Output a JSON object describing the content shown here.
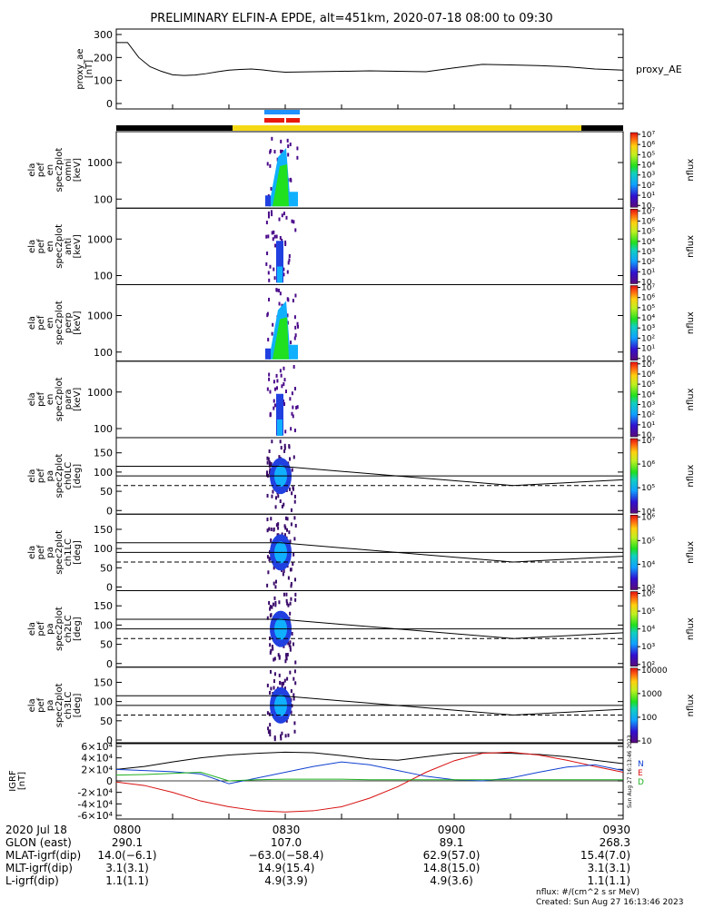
{
  "title": "PRELIMINARY ELFIN-A EPDE, alt=451km, 2020-07-18 08:00 to 09:30",
  "ae_panel": {
    "ylabel": [
      "proxy_ae",
      "[nT]"
    ],
    "yticks": [
      "0",
      "100",
      "200",
      "300"
    ],
    "side_label": "proxy_AE"
  },
  "spectral_panels": [
    {
      "ylabel": [
        "ela",
        "pef",
        "en",
        "spec2plot",
        "omni",
        "[keV]"
      ],
      "yticks": [
        "100",
        "1000"
      ],
      "cb_ticks": [
        "10",
        "10¹",
        "10²",
        "10³",
        "10⁴",
        "10⁵",
        "10⁶",
        "10⁷"
      ],
      "cb_label": "nflux"
    },
    {
      "ylabel": [
        "ela",
        "pef",
        "en",
        "spec2plot",
        "anti",
        "[keV]"
      ],
      "yticks": [
        "100",
        "1000"
      ],
      "cb_ticks": [
        "10",
        "10¹",
        "10²",
        "10³",
        "10⁴",
        "10⁵",
        "10⁶",
        "10⁷"
      ],
      "cb_label": "nflux"
    },
    {
      "ylabel": [
        "ela",
        "pef",
        "en",
        "spec2plot",
        "perp",
        "[keV]"
      ],
      "yticks": [
        "100",
        "1000"
      ],
      "cb_ticks": [
        "10",
        "10¹",
        "10²",
        "10³",
        "10⁴",
        "10⁵",
        "10⁶",
        "10⁷"
      ],
      "cb_label": "nflux"
    },
    {
      "ylabel": [
        "ela",
        "pef",
        "en",
        "spec2plot",
        "para",
        "[keV]"
      ],
      "yticks": [
        "100",
        "1000"
      ],
      "cb_ticks": [
        "10",
        "10¹",
        "10²",
        "10³",
        "10⁴",
        "10⁵",
        "10⁶",
        "10⁷"
      ],
      "cb_label": "nflux"
    }
  ],
  "pitch_panels": [
    {
      "ylabel": [
        "ela",
        "pef",
        "pa",
        "spec2plot",
        "ch0LC",
        "[deg]"
      ],
      "yticks": [
        "0",
        "50",
        "100",
        "150"
      ],
      "cb_ticks": [
        "10⁴",
        "10⁵",
        "10⁶",
        "10⁷"
      ],
      "cb_label": "nflux"
    },
    {
      "ylabel": [
        "ela",
        "pef",
        "pa",
        "spec2plot",
        "ch1LC",
        "[deg]"
      ],
      "yticks": [
        "0",
        "50",
        "100",
        "150"
      ],
      "cb_ticks": [
        "10³",
        "10⁴",
        "10⁵",
        "10⁶"
      ],
      "cb_label": "nflux"
    },
    {
      "ylabel": [
        "ela",
        "pef",
        "pa",
        "spec2plot",
        "ch2LC",
        "[deg]"
      ],
      "yticks": [
        "0",
        "50",
        "100",
        "150"
      ],
      "cb_ticks": [
        "10²",
        "10³",
        "10⁴",
        "10⁵",
        "10⁶"
      ],
      "cb_label": "nflux"
    },
    {
      "ylabel": [
        "ela",
        "pef",
        "pa",
        "spec2plot",
        "ch3LC",
        "[deg]"
      ],
      "yticks": [
        "0",
        "50",
        "100",
        "150"
      ],
      "cb_ticks": [
        "10",
        "100",
        "1000",
        "10000"
      ],
      "cb_label": "nflux"
    }
  ],
  "igrf_panel": {
    "ylabel": [
      "IGRF",
      "[nT]"
    ],
    "yticks": [
      "-6×10⁴",
      "-4×10⁴",
      "-2×10⁴",
      "0",
      "2×10⁴",
      "4×10⁴",
      "6×10⁴"
    ],
    "legend": [
      "N",
      "E",
      "D"
    ],
    "stamp": "Sun Aug 27 16:13:46 2023"
  },
  "footer": {
    "rows": [
      {
        "label": "2020 Jul 18",
        "values": [
          "0800",
          "0830",
          "0900",
          "0930"
        ]
      },
      {
        "label": "GLON (east)",
        "values": [
          "290.1",
          "107.0",
          "89.1",
          "268.3"
        ]
      },
      {
        "label": "MLAT-igrf(dip)",
        "values": [
          "14.0(−6.1)",
          "−63.0(−58.4)",
          "62.9(57.0)",
          "15.4(7.0)"
        ]
      },
      {
        "label": "MLT-igrf(dip)",
        "values": [
          "3.1(3.1)",
          "14.9(15.4)",
          "14.8(15.0)",
          "3.1(3.1)"
        ]
      },
      {
        "label": "L-igrf(dip)",
        "values": [
          "1.1(1.1)",
          "4.9(3.9)",
          "4.9(3.6)",
          "1.1(1.1)"
        ]
      }
    ],
    "units_note": "nflux: #/(cm^2 s sr MeV)",
    "created": "Created: Sun Aug 27 16:13:46 2023"
  },
  "colors": {
    "sci_zone_yellow": "#f5d814",
    "sci_zone_black": "#000000",
    "bar_blue": "#1e90ff",
    "bar_red": "#e8190c",
    "igrf_black": "#000000",
    "igrf_red": "#d81010",
    "igrf_blue": "#1040d0",
    "igrf_green": "#20b020"
  },
  "chart_data": [
    {
      "type": "line",
      "name": "proxy_AE",
      "x": [
        "08:00",
        "08:02",
        "08:04",
        "08:06",
        "08:08",
        "08:10",
        "08:12",
        "08:14",
        "08:16",
        "08:18",
        "08:20",
        "08:22",
        "08:24",
        "08:26",
        "08:28",
        "08:30",
        "08:35",
        "08:40",
        "08:45",
        "08:50",
        "08:55",
        "09:00",
        "09:05",
        "09:10",
        "09:15",
        "09:20",
        "09:25",
        "09:30"
      ],
      "values": [
        265,
        265,
        200,
        160,
        140,
        125,
        122,
        124,
        130,
        138,
        145,
        148,
        150,
        146,
        140,
        136,
        138,
        140,
        142,
        140,
        138,
        155,
        170,
        168,
        165,
        160,
        150,
        145
      ],
      "ylim": [
        0,
        300
      ]
    },
    {
      "type": "heatmap",
      "name": "pitch-angle panel reference lines",
      "lines": [
        {
          "style": "solid",
          "y_start": 115,
          "y_dip": 65,
          "y_end": 110
        },
        {
          "style": "solid",
          "y_start": 90,
          "y_dip": 65,
          "y_end": 78
        },
        {
          "style": "dashed",
          "y_start": 65,
          "y_end": 65
        }
      ],
      "ylim": [
        0,
        180
      ]
    },
    {
      "type": "line",
      "name": "IGRF components",
      "x": [
        "08:00",
        "08:05",
        "08:10",
        "08:15",
        "08:20",
        "08:25",
        "08:30",
        "08:35",
        "08:40",
        "08:45",
        "08:50",
        "08:55",
        "09:00",
        "09:05",
        "09:10",
        "09:15",
        "09:20",
        "09:25",
        "09:30"
      ],
      "series": [
        {
          "name": "",
          "values": [
            20000,
            25000,
            33000,
            40000,
            45000,
            48000,
            50000,
            49000,
            44000,
            38000,
            36000,
            42000,
            48000,
            49000,
            48000,
            46000,
            42000,
            36000,
            30000
          ]
        },
        {
          "name": "",
          "values": [
            -2000,
            -8000,
            -20000,
            -35000,
            -45000,
            -52000,
            -54000,
            -52000,
            -45000,
            -30000,
            -10000,
            15000,
            35000,
            48000,
            50000,
            45000,
            36000,
            25000,
            15000
          ]
        },
        {
          "name": "",
          "values": [
            20000,
            18000,
            16000,
            12000,
            -5000,
            5000,
            15000,
            25000,
            33000,
            28000,
            18000,
            8000,
            2000,
            0,
            5000,
            15000,
            24000,
            28000,
            18000
          ]
        },
        {
          "name": "",
          "values": [
            10000,
            11000,
            13000,
            15000,
            0,
            2000,
            3000,
            3000,
            3000,
            2000,
            2000,
            2000,
            2000,
            2000,
            2000,
            2000,
            2000,
            2000,
            2000
          ]
        }
      ],
      "ylim": [
        -60000,
        60000
      ]
    }
  ]
}
